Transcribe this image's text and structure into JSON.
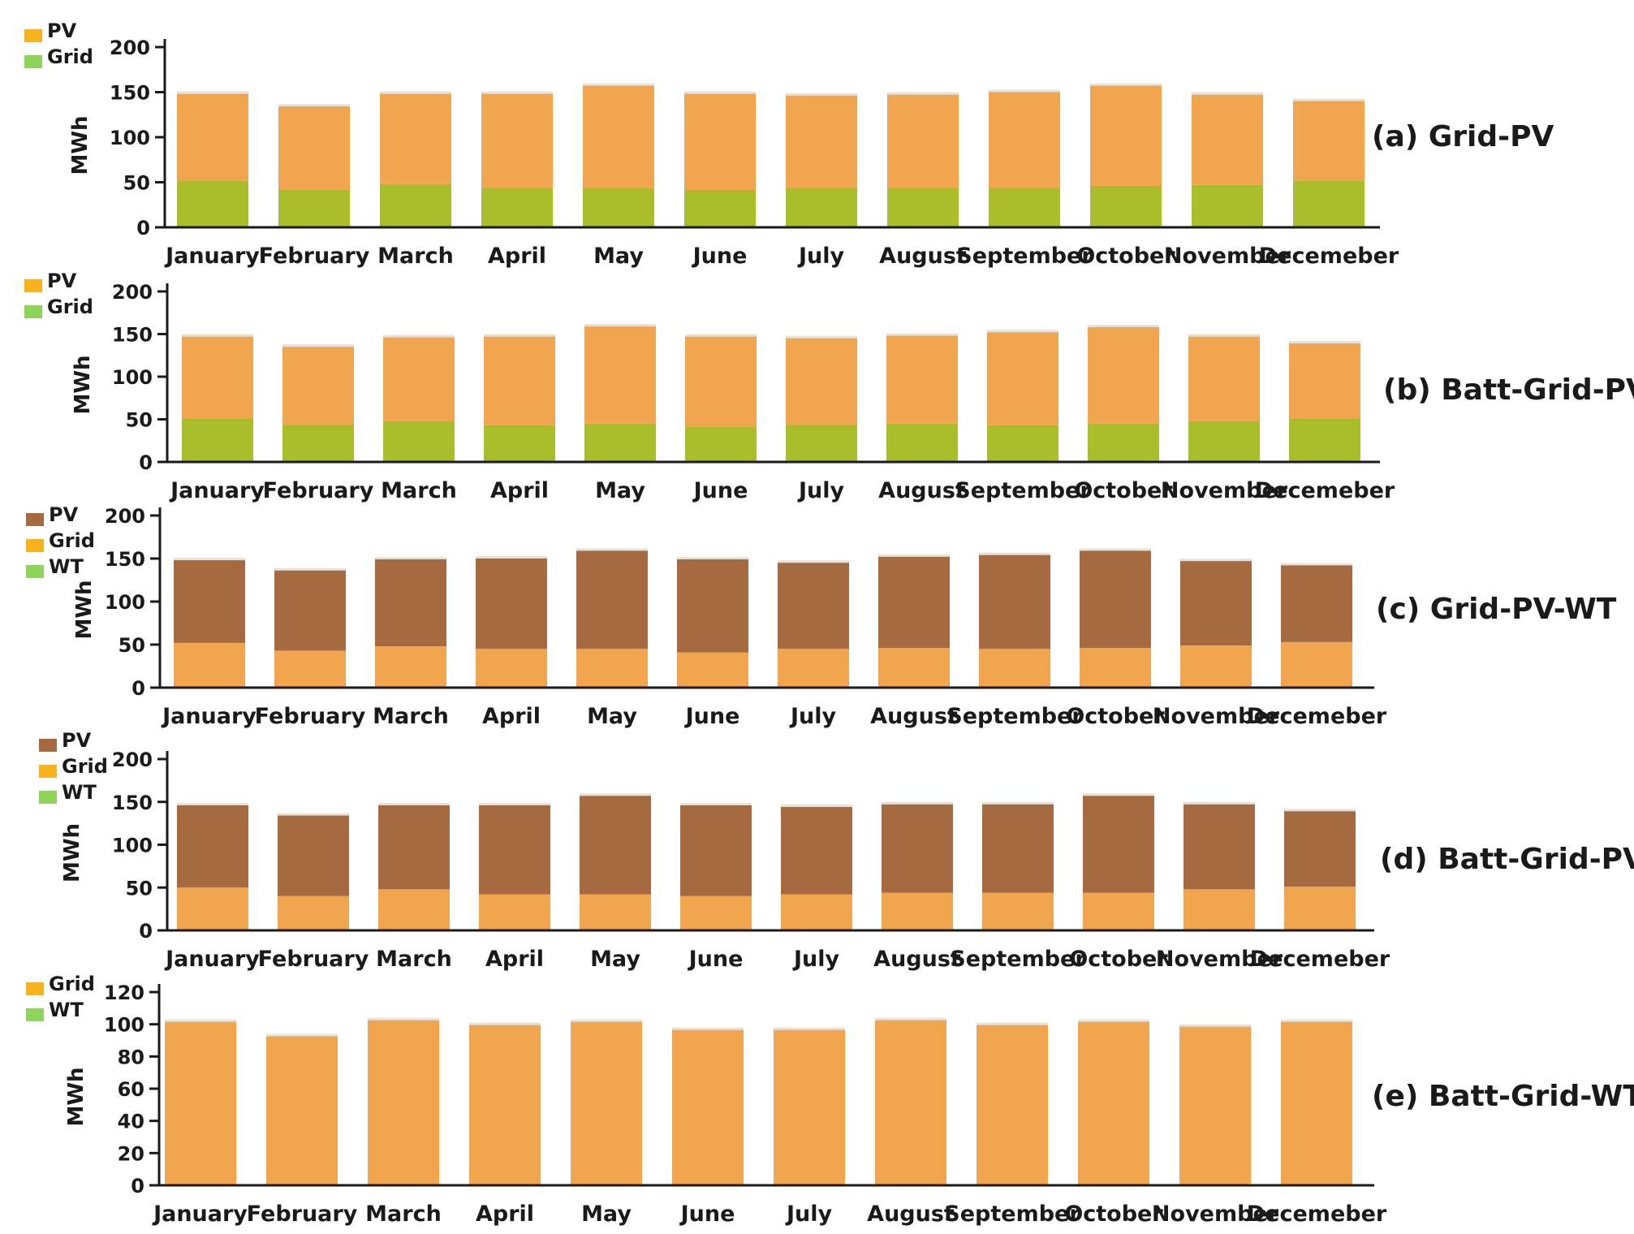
{
  "figure": "Monthly energy share for five system configurations",
  "colors": {
    "pv_orange": "#F0A54E",
    "grid_green": "#A9BE2A",
    "pv_brown": "#A66A41",
    "legend_yellow": "#F7B21E",
    "legend_green": "#8ED35A",
    "axis": "#1a1a1a"
  },
  "chart_data": [
    {
      "type": "bar",
      "stacked": true,
      "caption": "(a) Grid-PV",
      "ylabel": "MWh",
      "ylim": [
        0,
        200
      ],
      "yticks": [
        0,
        50,
        100,
        150,
        200
      ],
      "legend": [
        {
          "label": "PV",
          "color": "#F7B21E"
        },
        {
          "label": "Grid",
          "color": "#8ED35A"
        }
      ],
      "categories": [
        "January",
        "February",
        "March",
        "April",
        "May",
        "June",
        "July",
        "August",
        "September",
        "October",
        "November",
        "Decemeber"
      ],
      "series": [
        {
          "name": "Grid",
          "color": "#A9BE2A",
          "values": [
            52,
            42,
            48,
            44,
            44,
            41,
            44,
            44,
            44,
            46,
            47,
            52
          ]
        },
        {
          "name": "PV",
          "color": "#F0A54E",
          "values": [
            97,
            93,
            101,
            105,
            114,
            108,
            103,
            104,
            107,
            112,
            101,
            89
          ]
        }
      ]
    },
    {
      "type": "bar",
      "stacked": true,
      "caption": "(b) Batt-Grid-PV",
      "ylabel": "MWh",
      "ylim": [
        0,
        200
      ],
      "yticks": [
        0,
        50,
        100,
        150,
        200
      ],
      "legend": [
        {
          "label": "PV",
          "color": "#F7B21E"
        },
        {
          "label": "Grid",
          "color": "#8ED35A"
        }
      ],
      "categories": [
        "January",
        "February",
        "March",
        "April",
        "May",
        "June",
        "July",
        "August",
        "September",
        "October",
        "November",
        "Decemeber"
      ],
      "series": [
        {
          "name": "Grid",
          "color": "#A9BE2A",
          "values": [
            51,
            44,
            48,
            43,
            45,
            41,
            44,
            45,
            43,
            45,
            48,
            51
          ]
        },
        {
          "name": "PV",
          "color": "#F0A54E",
          "values": [
            97,
            92,
            99,
            105,
            115,
            107,
            102,
            104,
            110,
            114,
            100,
            89
          ]
        }
      ]
    },
    {
      "type": "bar",
      "stacked": true,
      "caption": "(c) Grid-PV-WT",
      "ylabel": "MWh",
      "ylim": [
        0,
        200
      ],
      "yticks": [
        0,
        50,
        100,
        150,
        200
      ],
      "legend": [
        {
          "label": "PV",
          "color": "#A66A41"
        },
        {
          "label": "Grid",
          "color": "#F7B21E"
        },
        {
          "label": "WT",
          "color": "#8ED35A"
        }
      ],
      "categories": [
        "January",
        "February",
        "March",
        "April",
        "May",
        "June",
        "July",
        "August",
        "September",
        "October",
        "November",
        "Decemeber"
      ],
      "series": [
        {
          "name": "Grid",
          "color": "#F0A54E",
          "values": [
            52,
            43,
            48,
            45,
            45,
            41,
            45,
            46,
            45,
            46,
            49,
            53
          ]
        },
        {
          "name": "PV",
          "color": "#A66A41",
          "values": [
            97,
            94,
            102,
            106,
            115,
            109,
            101,
            107,
            110,
            114,
            99,
            90
          ]
        }
      ]
    },
    {
      "type": "bar",
      "stacked": true,
      "caption": "(d) Batt-Grid-PV-WT",
      "ylabel": "MWh",
      "ylim": [
        0,
        200
      ],
      "yticks": [
        0,
        50,
        100,
        150,
        200
      ],
      "legend": [
        {
          "label": "PV",
          "color": "#A66A41"
        },
        {
          "label": "Grid",
          "color": "#F7B21E"
        },
        {
          "label": "WT",
          "color": "#8ED35A"
        }
      ],
      "categories": [
        "January",
        "February",
        "March",
        "April",
        "May",
        "June",
        "July",
        "August",
        "September",
        "October",
        "November",
        "Decemeber"
      ],
      "series": [
        {
          "name": "Grid",
          "color": "#F0A54E",
          "values": [
            50,
            40,
            48,
            42,
            42,
            40,
            42,
            44,
            44,
            44,
            48,
            51
          ]
        },
        {
          "name": "PV",
          "color": "#A66A41",
          "values": [
            97,
            95,
            99,
            105,
            116,
            107,
            103,
            104,
            104,
            114,
            100,
            89
          ]
        }
      ]
    },
    {
      "type": "bar",
      "stacked": false,
      "caption": "(e) Batt-Grid-WT",
      "ylabel": "MWh",
      "ylim": [
        0,
        120
      ],
      "yticks": [
        0,
        20,
        40,
        60,
        80,
        100,
        120
      ],
      "legend": [
        {
          "label": "Grid",
          "color": "#F7B21E"
        },
        {
          "label": "WT",
          "color": "#8ED35A"
        }
      ],
      "categories": [
        "January",
        "February",
        "March",
        "April",
        "May",
        "June",
        "July",
        "August",
        "September",
        "October",
        "November",
        "Decemeber"
      ],
      "series": [
        {
          "name": "Grid",
          "color": "#F0A54E",
          "values": [
            102,
            93,
            103,
            100,
            102,
            97,
            97,
            103,
            100,
            102,
            99,
            102
          ]
        }
      ]
    }
  ]
}
